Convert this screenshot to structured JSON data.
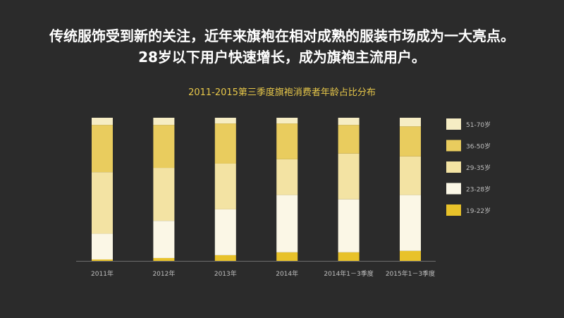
{
  "headline": {
    "line1": "传统服饰受到新的关注，近年来旗袍在相对成熟的服装市场成为一大亮点。",
    "line2": "28岁以下用户快速增长，成为旗袍主流用户。"
  },
  "chart_data": {
    "type": "bar",
    "stacked": true,
    "percent": true,
    "title": "2011-2015第三季度旗袍消费者年龄占比分布",
    "categories": [
      "2011年",
      "2012年",
      "2013年",
      "2014年",
      "2014年1－3季度",
      "2015年1－3季度"
    ],
    "series": [
      {
        "name": "19-22岁",
        "color": "#e8c22a",
        "values": [
          1,
          2,
          4,
          6,
          6,
          7
        ]
      },
      {
        "name": "23-28岁",
        "color": "#fbf7e6",
        "values": [
          18,
          26,
          32,
          40,
          37,
          39
        ]
      },
      {
        "name": "29-35岁",
        "color": "#f3e3a3",
        "values": [
          43,
          37,
          32,
          25,
          32,
          27
        ]
      },
      {
        "name": "36-50岁",
        "color": "#e9cc5e",
        "values": [
          33,
          30,
          28,
          25,
          20,
          21
        ]
      },
      {
        "name": "51-70岁",
        "color": "#f6edc4",
        "values": [
          5,
          5,
          4,
          4,
          5,
          6
        ]
      }
    ],
    "ylim": [
      0,
      100
    ],
    "legend_position": "right",
    "grid": false
  }
}
